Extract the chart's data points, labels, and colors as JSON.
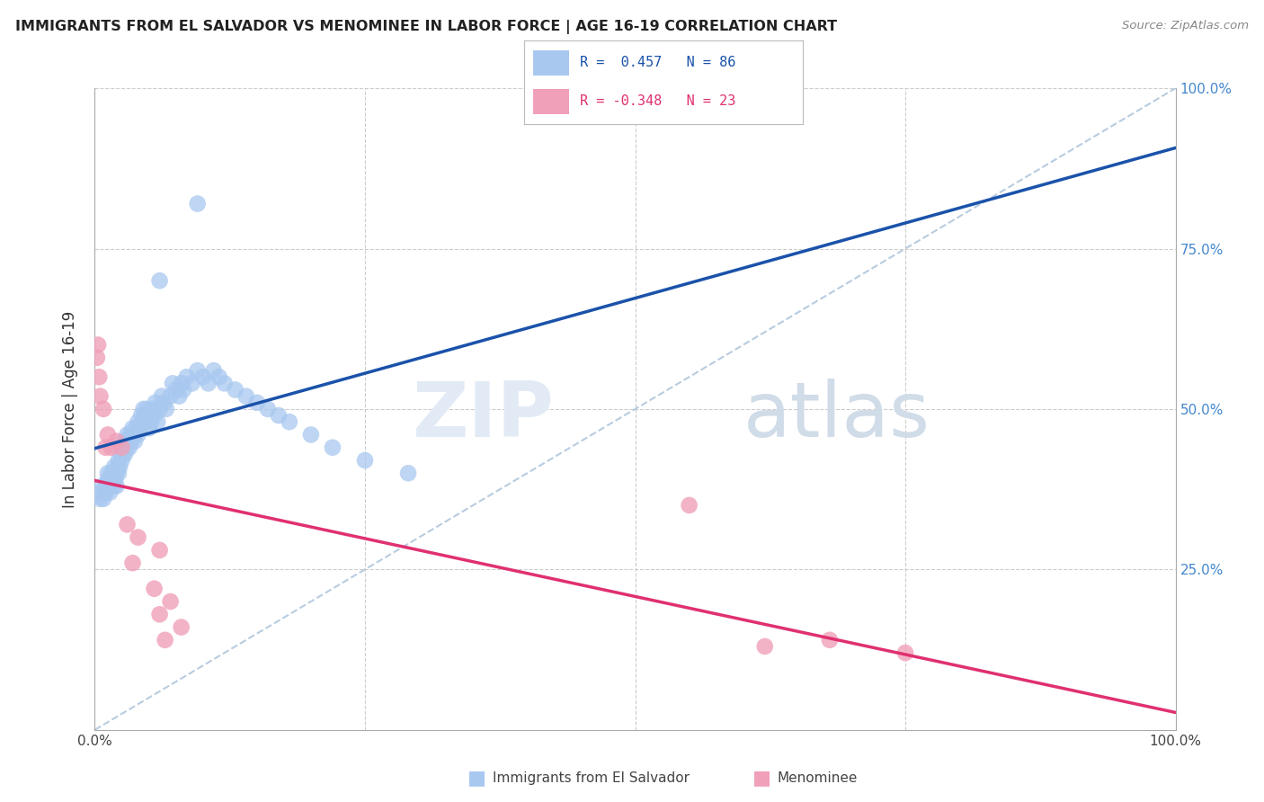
{
  "title": "IMMIGRANTS FROM EL SALVADOR VS MENOMINEE IN LABOR FORCE | AGE 16-19 CORRELATION CHART",
  "source": "Source: ZipAtlas.com",
  "ylabel": "In Labor Force | Age 16-19",
  "r_blue": 0.457,
  "n_blue": 86,
  "r_pink": -0.348,
  "n_pink": 23,
  "blue_scatter_color": "#A8C8F0",
  "pink_scatter_color": "#F0A0B8",
  "blue_line_color": "#1A52AA",
  "pink_line_color": "#E03070",
  "dashed_line_color": "#B8CCE0",
  "grid_color": "#CCCCCC",
  "right_tick_color": "#4488CC",
  "legend_blue_label": "Immigrants from El Salvador",
  "legend_pink_label": "Menominee",
  "blue_x": [
    0.005,
    0.006,
    0.007,
    0.008,
    0.01,
    0.01,
    0.012,
    0.012,
    0.013,
    0.014,
    0.015,
    0.015,
    0.016,
    0.017,
    0.018,
    0.018,
    0.019,
    0.02,
    0.02,
    0.021,
    0.022,
    0.022,
    0.023,
    0.024,
    0.025,
    0.025,
    0.026,
    0.027,
    0.028,
    0.028,
    0.03,
    0.03,
    0.031,
    0.032,
    0.033,
    0.034,
    0.035,
    0.036,
    0.037,
    0.038,
    0.04,
    0.04,
    0.042,
    0.043,
    0.044,
    0.045,
    0.046,
    0.047,
    0.048,
    0.05,
    0.05,
    0.052,
    0.054,
    0.055,
    0.056,
    0.058,
    0.06,
    0.062,
    0.064,
    0.066,
    0.07,
    0.072,
    0.075,
    0.078,
    0.08,
    0.082,
    0.085,
    0.09,
    0.095,
    0.1,
    0.105,
    0.11,
    0.115,
    0.12,
    0.13,
    0.14,
    0.15,
    0.16,
    0.17,
    0.18,
    0.2,
    0.22,
    0.25,
    0.29,
    0.095,
    0.06
  ],
  "blue_y": [
    0.36,
    0.37,
    0.38,
    0.36,
    0.38,
    0.37,
    0.4,
    0.39,
    0.38,
    0.37,
    0.38,
    0.4,
    0.39,
    0.4,
    0.41,
    0.38,
    0.39,
    0.4,
    0.38,
    0.41,
    0.4,
    0.42,
    0.41,
    0.43,
    0.42,
    0.44,
    0.43,
    0.45,
    0.44,
    0.43,
    0.44,
    0.46,
    0.45,
    0.44,
    0.46,
    0.45,
    0.47,
    0.46,
    0.45,
    0.47,
    0.46,
    0.48,
    0.47,
    0.49,
    0.48,
    0.5,
    0.49,
    0.48,
    0.5,
    0.49,
    0.47,
    0.48,
    0.5,
    0.49,
    0.51,
    0.48,
    0.5,
    0.52,
    0.51,
    0.5,
    0.52,
    0.54,
    0.53,
    0.52,
    0.54,
    0.53,
    0.55,
    0.54,
    0.56,
    0.55,
    0.54,
    0.56,
    0.55,
    0.54,
    0.53,
    0.52,
    0.51,
    0.5,
    0.49,
    0.48,
    0.46,
    0.44,
    0.42,
    0.4,
    0.82,
    0.7
  ],
  "pink_x": [
    0.002,
    0.003,
    0.004,
    0.005,
    0.008,
    0.01,
    0.012,
    0.015,
    0.02,
    0.025,
    0.03,
    0.035,
    0.04,
    0.055,
    0.06,
    0.06,
    0.065,
    0.07,
    0.08,
    0.55,
    0.62,
    0.68,
    0.75
  ],
  "pink_y": [
    0.58,
    0.6,
    0.55,
    0.52,
    0.5,
    0.44,
    0.46,
    0.44,
    0.45,
    0.44,
    0.32,
    0.26,
    0.3,
    0.22,
    0.18,
    0.28,
    0.14,
    0.2,
    0.16,
    0.35,
    0.13,
    0.14,
    0.12
  ]
}
